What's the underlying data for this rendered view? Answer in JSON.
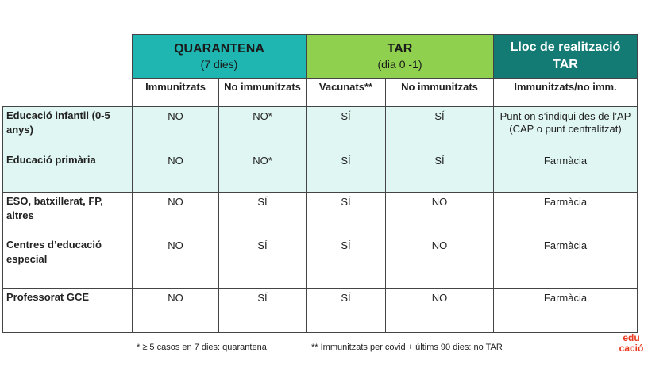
{
  "header": {
    "quarantine_title": "QUARANTENA",
    "quarantine_sub": "(7 dies)",
    "tar_title": "TAR",
    "tar_sub": "(dia 0 -1)",
    "place_title_1": "Lloc de realització",
    "place_title_2": "TAR"
  },
  "subheaders": [
    "Immunitzats",
    "No immunitzats",
    "Vacunats**",
    "No immunitzats",
    "Immunitzats/no imm."
  ],
  "rows": [
    {
      "label": "Educació infantil (0-5 anys)",
      "c1": "NO",
      "c2": "NO*",
      "c3": "SÍ",
      "c4": "SÍ",
      "c5": "Punt on s’indiqui des de l’AP (CAP o punt centralitzat)"
    },
    {
      "label": "Educació primària",
      "c1": "NO",
      "c2": "NO*",
      "c3": "SÍ",
      "c4": "SÍ",
      "c5": "Farmàcia"
    },
    {
      "label": "ESO, batxillerat, FP, altres",
      "c1": "NO",
      "c2": "SÍ",
      "c3": "SÍ",
      "c4": "NO",
      "c5": "Farmàcia"
    },
    {
      "label": "Centres d’educació especial",
      "c1": "NO",
      "c2": "SÍ",
      "c3": "SÍ",
      "c4": "NO",
      "c5": "Farmàcia"
    },
    {
      "label": "Professorat GCE",
      "c1": "NO",
      "c2": "SÍ",
      "c3": "SÍ",
      "c4": "NO",
      "c5": "Farmàcia"
    }
  ],
  "footnotes": {
    "note1": "* ≥ 5 casos en 7 dies: quarantena",
    "note2": "** Immunitzats per covid + últims 90 dies: no TAR"
  },
  "logo": {
    "line1": "edu",
    "line2": "cació",
    "color": "#e8381e"
  },
  "colors": {
    "quarantine": "#1fb5b0",
    "tar": "#8fd14f",
    "place": "#137a74",
    "tint": "#dff6f2"
  }
}
